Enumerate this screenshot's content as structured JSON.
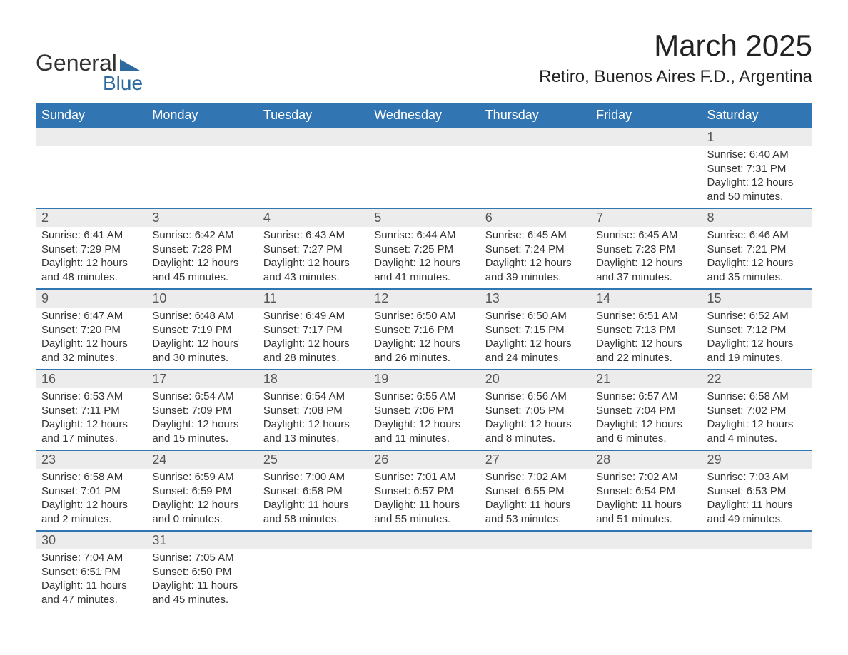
{
  "logo": {
    "word1": "General",
    "word2": "Blue",
    "triangle_color": "#2c6aa0"
  },
  "title": "March 2025",
  "location": "Retiro, Buenos Aires F.D., Argentina",
  "colors": {
    "header_bg": "#3175b2",
    "header_text": "#ffffff",
    "daynum_bg": "#ececec",
    "row_border": "#3175b2",
    "body_text": "#333333"
  },
  "day_headers": [
    "Sunday",
    "Monday",
    "Tuesday",
    "Wednesday",
    "Thursday",
    "Friday",
    "Saturday"
  ],
  "weeks": [
    [
      null,
      null,
      null,
      null,
      null,
      null,
      {
        "n": "1",
        "sr": "Sunrise: 6:40 AM",
        "ss": "Sunset: 7:31 PM",
        "dl": "Daylight: 12 hours and 50 minutes."
      }
    ],
    [
      {
        "n": "2",
        "sr": "Sunrise: 6:41 AM",
        "ss": "Sunset: 7:29 PM",
        "dl": "Daylight: 12 hours and 48 minutes."
      },
      {
        "n": "3",
        "sr": "Sunrise: 6:42 AM",
        "ss": "Sunset: 7:28 PM",
        "dl": "Daylight: 12 hours and 45 minutes."
      },
      {
        "n": "4",
        "sr": "Sunrise: 6:43 AM",
        "ss": "Sunset: 7:27 PM",
        "dl": "Daylight: 12 hours and 43 minutes."
      },
      {
        "n": "5",
        "sr": "Sunrise: 6:44 AM",
        "ss": "Sunset: 7:25 PM",
        "dl": "Daylight: 12 hours and 41 minutes."
      },
      {
        "n": "6",
        "sr": "Sunrise: 6:45 AM",
        "ss": "Sunset: 7:24 PM",
        "dl": "Daylight: 12 hours and 39 minutes."
      },
      {
        "n": "7",
        "sr": "Sunrise: 6:45 AM",
        "ss": "Sunset: 7:23 PM",
        "dl": "Daylight: 12 hours and 37 minutes."
      },
      {
        "n": "8",
        "sr": "Sunrise: 6:46 AM",
        "ss": "Sunset: 7:21 PM",
        "dl": "Daylight: 12 hours and 35 minutes."
      }
    ],
    [
      {
        "n": "9",
        "sr": "Sunrise: 6:47 AM",
        "ss": "Sunset: 7:20 PM",
        "dl": "Daylight: 12 hours and 32 minutes."
      },
      {
        "n": "10",
        "sr": "Sunrise: 6:48 AM",
        "ss": "Sunset: 7:19 PM",
        "dl": "Daylight: 12 hours and 30 minutes."
      },
      {
        "n": "11",
        "sr": "Sunrise: 6:49 AM",
        "ss": "Sunset: 7:17 PM",
        "dl": "Daylight: 12 hours and 28 minutes."
      },
      {
        "n": "12",
        "sr": "Sunrise: 6:50 AM",
        "ss": "Sunset: 7:16 PM",
        "dl": "Daylight: 12 hours and 26 minutes."
      },
      {
        "n": "13",
        "sr": "Sunrise: 6:50 AM",
        "ss": "Sunset: 7:15 PM",
        "dl": "Daylight: 12 hours and 24 minutes."
      },
      {
        "n": "14",
        "sr": "Sunrise: 6:51 AM",
        "ss": "Sunset: 7:13 PM",
        "dl": "Daylight: 12 hours and 22 minutes."
      },
      {
        "n": "15",
        "sr": "Sunrise: 6:52 AM",
        "ss": "Sunset: 7:12 PM",
        "dl": "Daylight: 12 hours and 19 minutes."
      }
    ],
    [
      {
        "n": "16",
        "sr": "Sunrise: 6:53 AM",
        "ss": "Sunset: 7:11 PM",
        "dl": "Daylight: 12 hours and 17 minutes."
      },
      {
        "n": "17",
        "sr": "Sunrise: 6:54 AM",
        "ss": "Sunset: 7:09 PM",
        "dl": "Daylight: 12 hours and 15 minutes."
      },
      {
        "n": "18",
        "sr": "Sunrise: 6:54 AM",
        "ss": "Sunset: 7:08 PM",
        "dl": "Daylight: 12 hours and 13 minutes."
      },
      {
        "n": "19",
        "sr": "Sunrise: 6:55 AM",
        "ss": "Sunset: 7:06 PM",
        "dl": "Daylight: 12 hours and 11 minutes."
      },
      {
        "n": "20",
        "sr": "Sunrise: 6:56 AM",
        "ss": "Sunset: 7:05 PM",
        "dl": "Daylight: 12 hours and 8 minutes."
      },
      {
        "n": "21",
        "sr": "Sunrise: 6:57 AM",
        "ss": "Sunset: 7:04 PM",
        "dl": "Daylight: 12 hours and 6 minutes."
      },
      {
        "n": "22",
        "sr": "Sunrise: 6:58 AM",
        "ss": "Sunset: 7:02 PM",
        "dl": "Daylight: 12 hours and 4 minutes."
      }
    ],
    [
      {
        "n": "23",
        "sr": "Sunrise: 6:58 AM",
        "ss": "Sunset: 7:01 PM",
        "dl": "Daylight: 12 hours and 2 minutes."
      },
      {
        "n": "24",
        "sr": "Sunrise: 6:59 AM",
        "ss": "Sunset: 6:59 PM",
        "dl": "Daylight: 12 hours and 0 minutes."
      },
      {
        "n": "25",
        "sr": "Sunrise: 7:00 AM",
        "ss": "Sunset: 6:58 PM",
        "dl": "Daylight: 11 hours and 58 minutes."
      },
      {
        "n": "26",
        "sr": "Sunrise: 7:01 AM",
        "ss": "Sunset: 6:57 PM",
        "dl": "Daylight: 11 hours and 55 minutes."
      },
      {
        "n": "27",
        "sr": "Sunrise: 7:02 AM",
        "ss": "Sunset: 6:55 PM",
        "dl": "Daylight: 11 hours and 53 minutes."
      },
      {
        "n": "28",
        "sr": "Sunrise: 7:02 AM",
        "ss": "Sunset: 6:54 PM",
        "dl": "Daylight: 11 hours and 51 minutes."
      },
      {
        "n": "29",
        "sr": "Sunrise: 7:03 AM",
        "ss": "Sunset: 6:53 PM",
        "dl": "Daylight: 11 hours and 49 minutes."
      }
    ],
    [
      {
        "n": "30",
        "sr": "Sunrise: 7:04 AM",
        "ss": "Sunset: 6:51 PM",
        "dl": "Daylight: 11 hours and 47 minutes."
      },
      {
        "n": "31",
        "sr": "Sunrise: 7:05 AM",
        "ss": "Sunset: 6:50 PM",
        "dl": "Daylight: 11 hours and 45 minutes."
      },
      null,
      null,
      null,
      null,
      null
    ]
  ]
}
